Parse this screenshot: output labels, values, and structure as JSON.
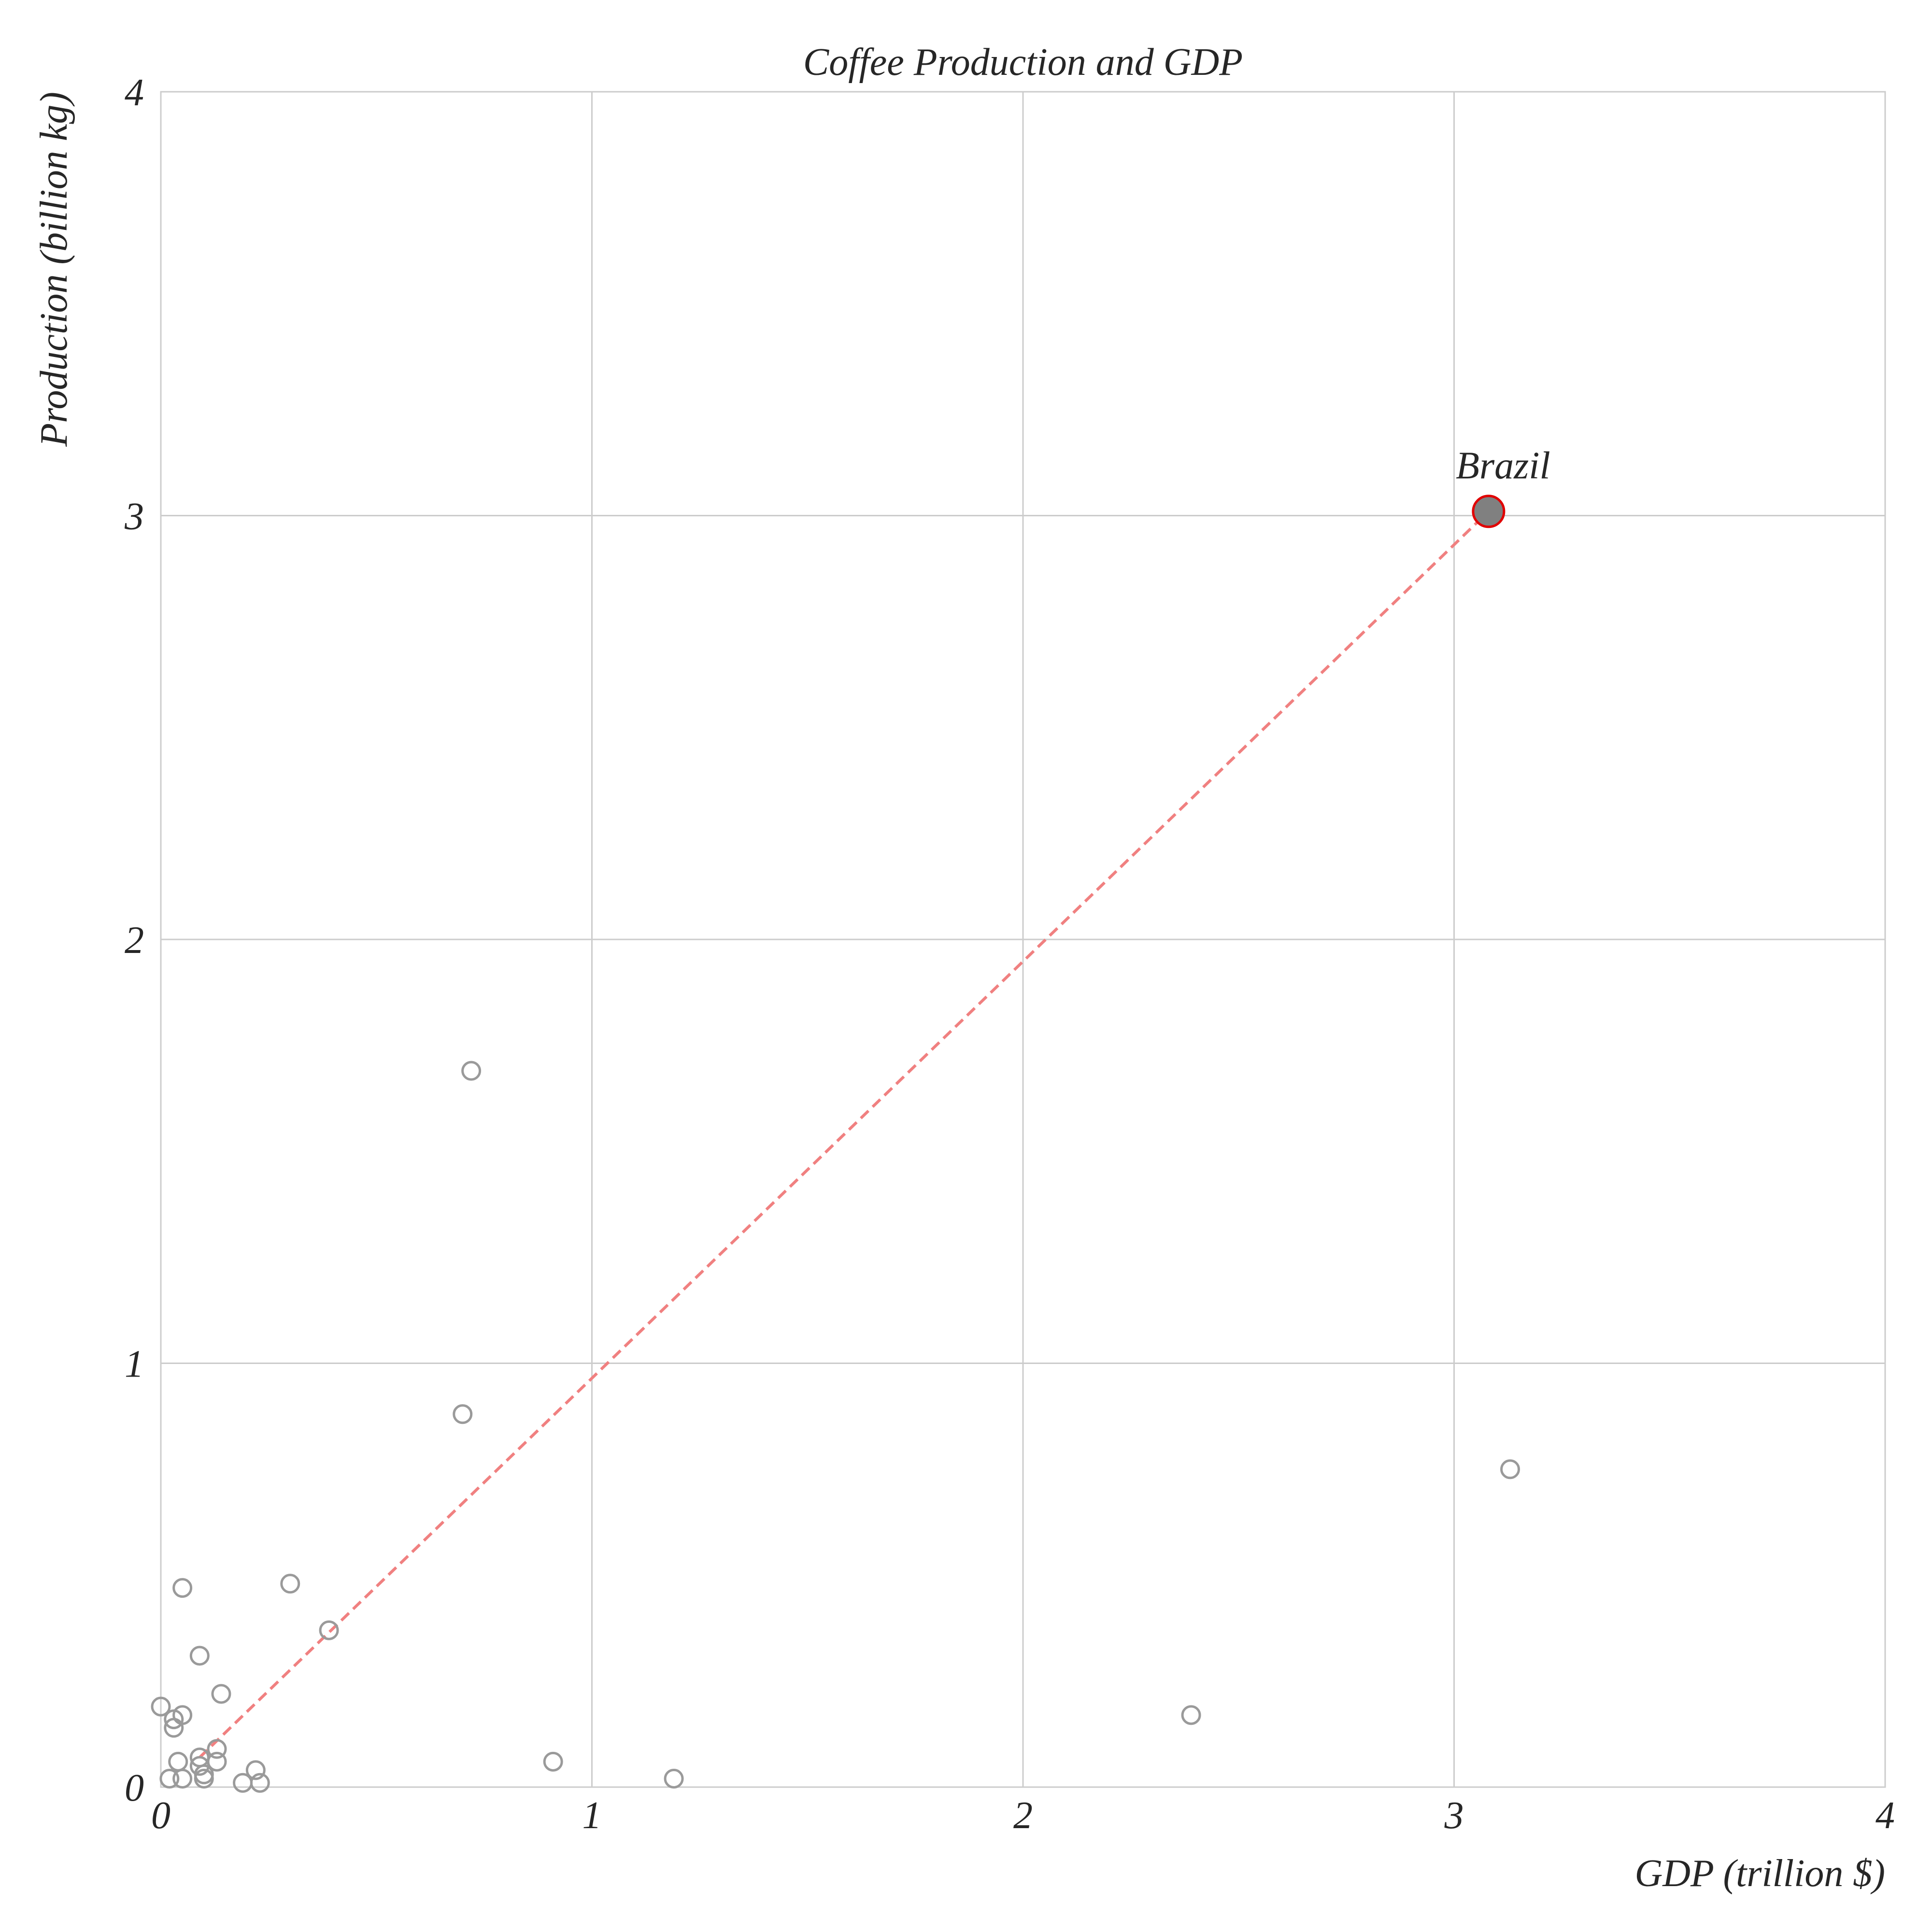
{
  "chart_data": {
    "type": "scatter",
    "title": "Coffee Production and GDP",
    "xlabel": "GDP (trillion $)",
    "ylabel": "Production (billion kg)",
    "xlim": [
      0,
      4
    ],
    "ylim": [
      0,
      4
    ],
    "xticks": [
      "0",
      "1",
      "2",
      "3",
      "4"
    ],
    "yticks": [
      "0",
      "1",
      "2",
      "3",
      "4"
    ],
    "grid": true,
    "colors": {
      "marker_edge": "#9a9a9a",
      "highlight_fill": "#808080",
      "highlight_edge": "#e00000",
      "trend_line": "#f08080",
      "grid": "#cccccc"
    },
    "points": [
      {
        "x": 0.72,
        "y": 1.69
      },
      {
        "x": 0.7,
        "y": 0.88
      },
      {
        "x": 3.13,
        "y": 0.75
      },
      {
        "x": 0.3,
        "y": 0.48
      },
      {
        "x": 0.05,
        "y": 0.47
      },
      {
        "x": 0.39,
        "y": 0.37
      },
      {
        "x": 0.09,
        "y": 0.31
      },
      {
        "x": 0.14,
        "y": 0.22
      },
      {
        "x": 2.39,
        "y": 0.17
      },
      {
        "x": 0.0,
        "y": 0.19
      },
      {
        "x": 0.05,
        "y": 0.17
      },
      {
        "x": 0.03,
        "y": 0.16
      },
      {
        "x": 0.03,
        "y": 0.14
      },
      {
        "x": 0.13,
        "y": 0.09
      },
      {
        "x": 0.09,
        "y": 0.07
      },
      {
        "x": 0.04,
        "y": 0.06
      },
      {
        "x": 0.13,
        "y": 0.06
      },
      {
        "x": 0.09,
        "y": 0.05
      },
      {
        "x": 0.91,
        "y": 0.06
      },
      {
        "x": 0.22,
        "y": 0.04
      },
      {
        "x": 0.1,
        "y": 0.03
      },
      {
        "x": 0.02,
        "y": 0.02
      },
      {
        "x": 0.05,
        "y": 0.02
      },
      {
        "x": 0.1,
        "y": 0.02
      },
      {
        "x": 1.19,
        "y": 0.02
      },
      {
        "x": 0.19,
        "y": 0.01
      },
      {
        "x": 0.23,
        "y": 0.01
      }
    ],
    "highlight": {
      "label": "Brazil",
      "x": 3.08,
      "y": 3.01
    },
    "trend_line": {
      "x": [
        0.09,
        3.08
      ],
      "y": [
        0.07,
        3.01
      ]
    }
  }
}
